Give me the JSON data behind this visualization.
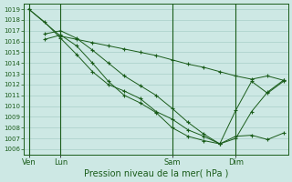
{
  "background_color": "#cde8e4",
  "grid_color": "#a8cfc8",
  "line_color": "#1a5c1a",
  "marker_color": "#1a5c1a",
  "xlabel": "Pression niveau de la mer( hPa )",
  "ylim": [
    1005.5,
    1019.5
  ],
  "yticks": [
    1006,
    1007,
    1008,
    1009,
    1010,
    1011,
    1012,
    1013,
    1014,
    1015,
    1016,
    1017,
    1018,
    1019
  ],
  "xtick_labels": [
    "Ven",
    "Lun",
    "Sam",
    "Dim"
  ],
  "xtick_positions": [
    0,
    2,
    9,
    13
  ],
  "xlim": [
    -0.3,
    16.3
  ],
  "series": [
    {
      "x": [
        0,
        2,
        3,
        4,
        5,
        6,
        7,
        8,
        9,
        10,
        11,
        12,
        13,
        14,
        15,
        16
      ],
      "y": [
        1019.0,
        1016.5,
        1016.2,
        1015.9,
        1015.6,
        1015.3,
        1015.0,
        1014.7,
        1014.3,
        1013.9,
        1013.6,
        1013.2,
        1012.8,
        1012.5,
        1012.8,
        1012.4
      ]
    },
    {
      "x": [
        0,
        1,
        2,
        3,
        4,
        5,
        6,
        7,
        8,
        9,
        10,
        11,
        12,
        13,
        14,
        15,
        16
      ],
      "y": [
        1019.0,
        1017.8,
        1016.3,
        1014.8,
        1013.2,
        1012.0,
        1011.4,
        1010.7,
        1009.5,
        1008.8,
        1007.8,
        1007.2,
        1006.5,
        1007.0,
        1009.5,
        1011.3,
        1012.4
      ]
    },
    {
      "x": [
        1,
        2,
        3,
        4,
        5,
        6,
        7,
        8,
        9,
        10,
        11,
        12,
        13,
        14,
        15,
        16
      ],
      "y": [
        1016.7,
        1017.0,
        1016.3,
        1015.2,
        1014.0,
        1012.8,
        1011.9,
        1011.0,
        1009.8,
        1008.5,
        1007.4,
        1006.5,
        1007.2,
        1007.3,
        1006.9,
        1007.5
      ]
    },
    {
      "x": [
        1,
        2,
        3,
        4,
        5,
        6,
        7,
        8,
        9,
        10,
        11,
        12,
        13,
        14,
        15,
        16
      ],
      "y": [
        1016.2,
        1016.6,
        1015.6,
        1014.0,
        1012.3,
        1011.0,
        1010.3,
        1009.4,
        1008.0,
        1007.2,
        1006.8,
        1006.5,
        1009.6,
        1012.3,
        1011.2,
        1012.3
      ]
    }
  ],
  "vlines_x": [
    0,
    2,
    9,
    13
  ],
  "figsize": [
    3.2,
    2.0
  ],
  "dpi": 100,
  "xlabel_fontsize": 7,
  "ytick_fontsize": 5,
  "xtick_fontsize": 6
}
